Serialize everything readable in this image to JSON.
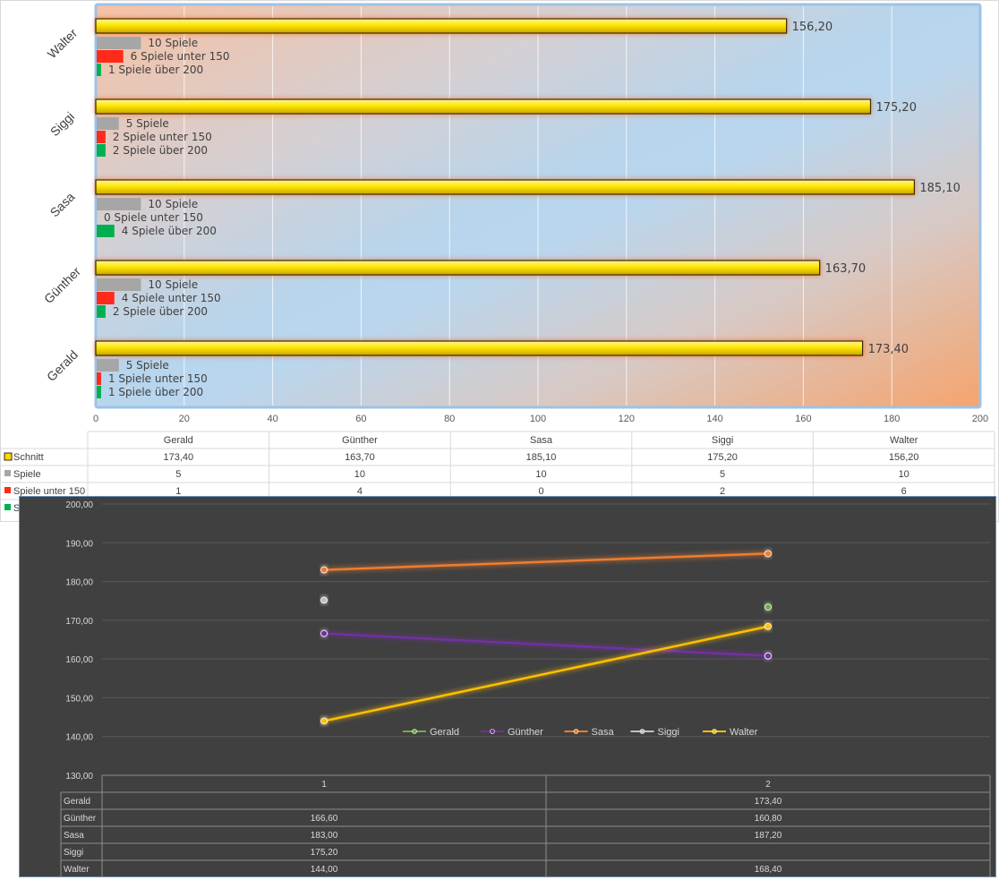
{
  "chart_data": [
    {
      "type": "bar",
      "orientation": "horizontal",
      "categories": [
        "Gerald",
        "Günther",
        "Sasa",
        "Siggi",
        "Walter"
      ],
      "series": [
        {
          "name": "Schnitt",
          "values": [
            173.4,
            163.7,
            185.1,
            175.2,
            156.2
          ],
          "labels": [
            "173,40",
            "163,70",
            "185,10",
            "175,20",
            "156,20"
          ],
          "color": "#ffd700"
        },
        {
          "name": "Spiele",
          "values": [
            5,
            10,
            10,
            5,
            10
          ],
          "labels": [
            "5 Spiele",
            "10 Spiele",
            "10 Spiele",
            "5 Spiele",
            "10 Spiele"
          ],
          "color": "#a6a6a6"
        },
        {
          "name": "Spiele unter 150",
          "values": [
            1,
            4,
            0,
            2,
            6
          ],
          "labels": [
            "1 Spiele unter 150",
            "4 Spiele unter 150",
            "0 Spiele unter 150",
            "2 Spiele unter 150",
            "6 Spiele unter 150"
          ],
          "color": "#ff2a1a"
        },
        {
          "name": "Spiele über 200",
          "values": [
            1,
            2,
            4,
            2,
            1
          ],
          "labels": [
            "1 Spiele über 200",
            "2 Spiele über 200",
            "4 Spiele über 200",
            "2 Spiele über 200",
            "1 Spiele über 200"
          ],
          "color": "#00b050"
        }
      ],
      "xlim": [
        0,
        200
      ],
      "xticks": [
        "0",
        "20",
        "40",
        "60",
        "80",
        "100",
        "120",
        "140",
        "160",
        "180",
        "200"
      ],
      "grid": true,
      "data_table": {
        "header": [
          "Gerald",
          "Günther",
          "Sasa",
          "Siggi",
          "Walter"
        ],
        "rows": [
          {
            "name": "Schnitt",
            "cells": [
              "173,40",
              "163,70",
              "185,10",
              "175,20",
              "156,20"
            ]
          },
          {
            "name": "Spiele",
            "cells": [
              "5",
              "10",
              "10",
              "5",
              "10"
            ]
          },
          {
            "name": "Spiele unter 150",
            "cells": [
              "1",
              "4",
              "0",
              "2",
              "6"
            ]
          },
          {
            "name": "S",
            "cells": []
          }
        ]
      }
    },
    {
      "type": "line",
      "x": [
        "1",
        "2"
      ],
      "series": [
        {
          "name": "Gerald",
          "values": [
            null,
            173.4
          ],
          "labels": [
            "",
            "173,40"
          ],
          "color": "#70ad47"
        },
        {
          "name": "Günther",
          "values": [
            166.6,
            160.8
          ],
          "labels": [
            "166,60",
            "160,80"
          ],
          "color": "#7030a0"
        },
        {
          "name": "Sasa",
          "values": [
            183.0,
            187.2
          ],
          "labels": [
            "183,00",
            "187,20"
          ],
          "color": "#ed7d31"
        },
        {
          "name": "Siggi",
          "values": [
            175.2,
            null
          ],
          "labels": [
            "175,20",
            ""
          ],
          "color": "#bfbfbf"
        },
        {
          "name": "Walter",
          "values": [
            144.0,
            168.4
          ],
          "labels": [
            "144,00",
            "168,40"
          ],
          "color": "#ffc000"
        }
      ],
      "ylim": [
        130,
        200
      ],
      "yticks": [
        "130,00",
        "140,00",
        "150,00",
        "160,00",
        "170,00",
        "180,00",
        "190,00",
        "200,00"
      ],
      "grid": true,
      "legend": "inside-bottom-center"
    }
  ]
}
